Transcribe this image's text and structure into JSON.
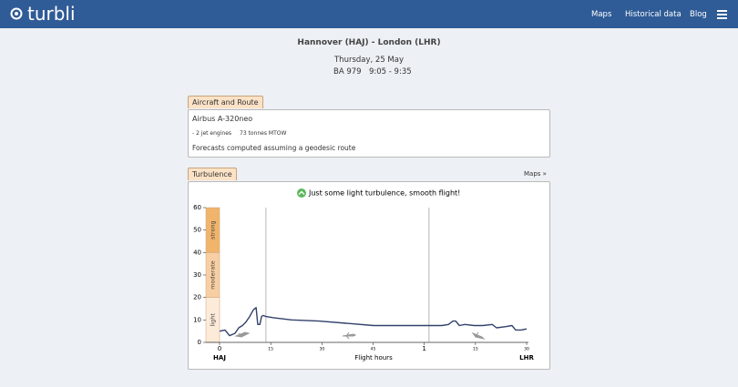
{
  "header": {
    "logo": "turbli",
    "nav": [
      "Maps",
      "Historical data",
      "Blog"
    ]
  },
  "flight": {
    "route": "Hannover (HAJ) - London (LHR)",
    "date": "Thursday, 25 May",
    "flight_number": "BA 979",
    "time": "9:05 - 9:35"
  },
  "aircraft_panel": {
    "tab": "Aircraft and Route",
    "model": "Airbus A-320neo",
    "engines": "- 2 jet engines",
    "mtow": "73 tonnes MTOW",
    "note": "Forecasts computed assuming a geodesic route"
  },
  "turbulence_panel": {
    "tab": "Turbulence",
    "maps_link": "Maps »",
    "message": "Just some light turbulence, smooth flight!"
  },
  "chart_data": {
    "type": "line",
    "x": [
      0,
      1.6,
      2.9,
      4.5,
      5.6,
      6.7,
      7.7,
      8.8,
      9.9,
      10.7,
      11.2,
      11.8,
      12.3,
      12.8,
      13.6,
      15.8,
      21.1,
      29.1,
      37.1,
      45.1,
      53.2,
      61.2,
      65.2,
      67.1,
      68.4,
      69.2,
      70.3,
      71.9,
      74.6,
      77.2,
      79.9,
      81.2,
      83.9,
      85.7,
      86.8,
      88.4,
      90
    ],
    "values": [
      5,
      5.5,
      3,
      4,
      6.5,
      7.5,
      9,
      11.5,
      14.5,
      15.5,
      8,
      8,
      11.5,
      12,
      11.5,
      11,
      10,
      9.5,
      8.5,
      7.5,
      7.5,
      7.5,
      7.5,
      8,
      9.5,
      9.5,
      7.5,
      8,
      7.5,
      7.5,
      8,
      6.5,
      7,
      7.5,
      5.5,
      5.5,
      6
    ],
    "color": "#33426b",
    "xlim": [
      0,
      90
    ],
    "ylim": [
      0,
      60
    ],
    "yticks": [
      0,
      10,
      20,
      30,
      40,
      50,
      60
    ],
    "xticks": [
      0,
      15,
      30,
      45,
      {
        "value": 60,
        "label": "1"
      },
      {
        "value": 75,
        "label": "15"
      },
      {
        "value": 90,
        "label": "30"
      }
    ],
    "markers": [
      13.6,
      61.4
    ],
    "bands": [
      {
        "label": "light",
        "from": 0,
        "to": 20,
        "color": "#fdebd9"
      },
      {
        "label": "moderate",
        "from": 20,
        "to": 40,
        "color": "#f8cfa3"
      },
      {
        "label": "strong",
        "from": 40,
        "to": 60,
        "color": "#f1b46b"
      }
    ],
    "xlabel": "Flight hours",
    "origin_label": "HAJ",
    "destination_label": "LHR"
  }
}
